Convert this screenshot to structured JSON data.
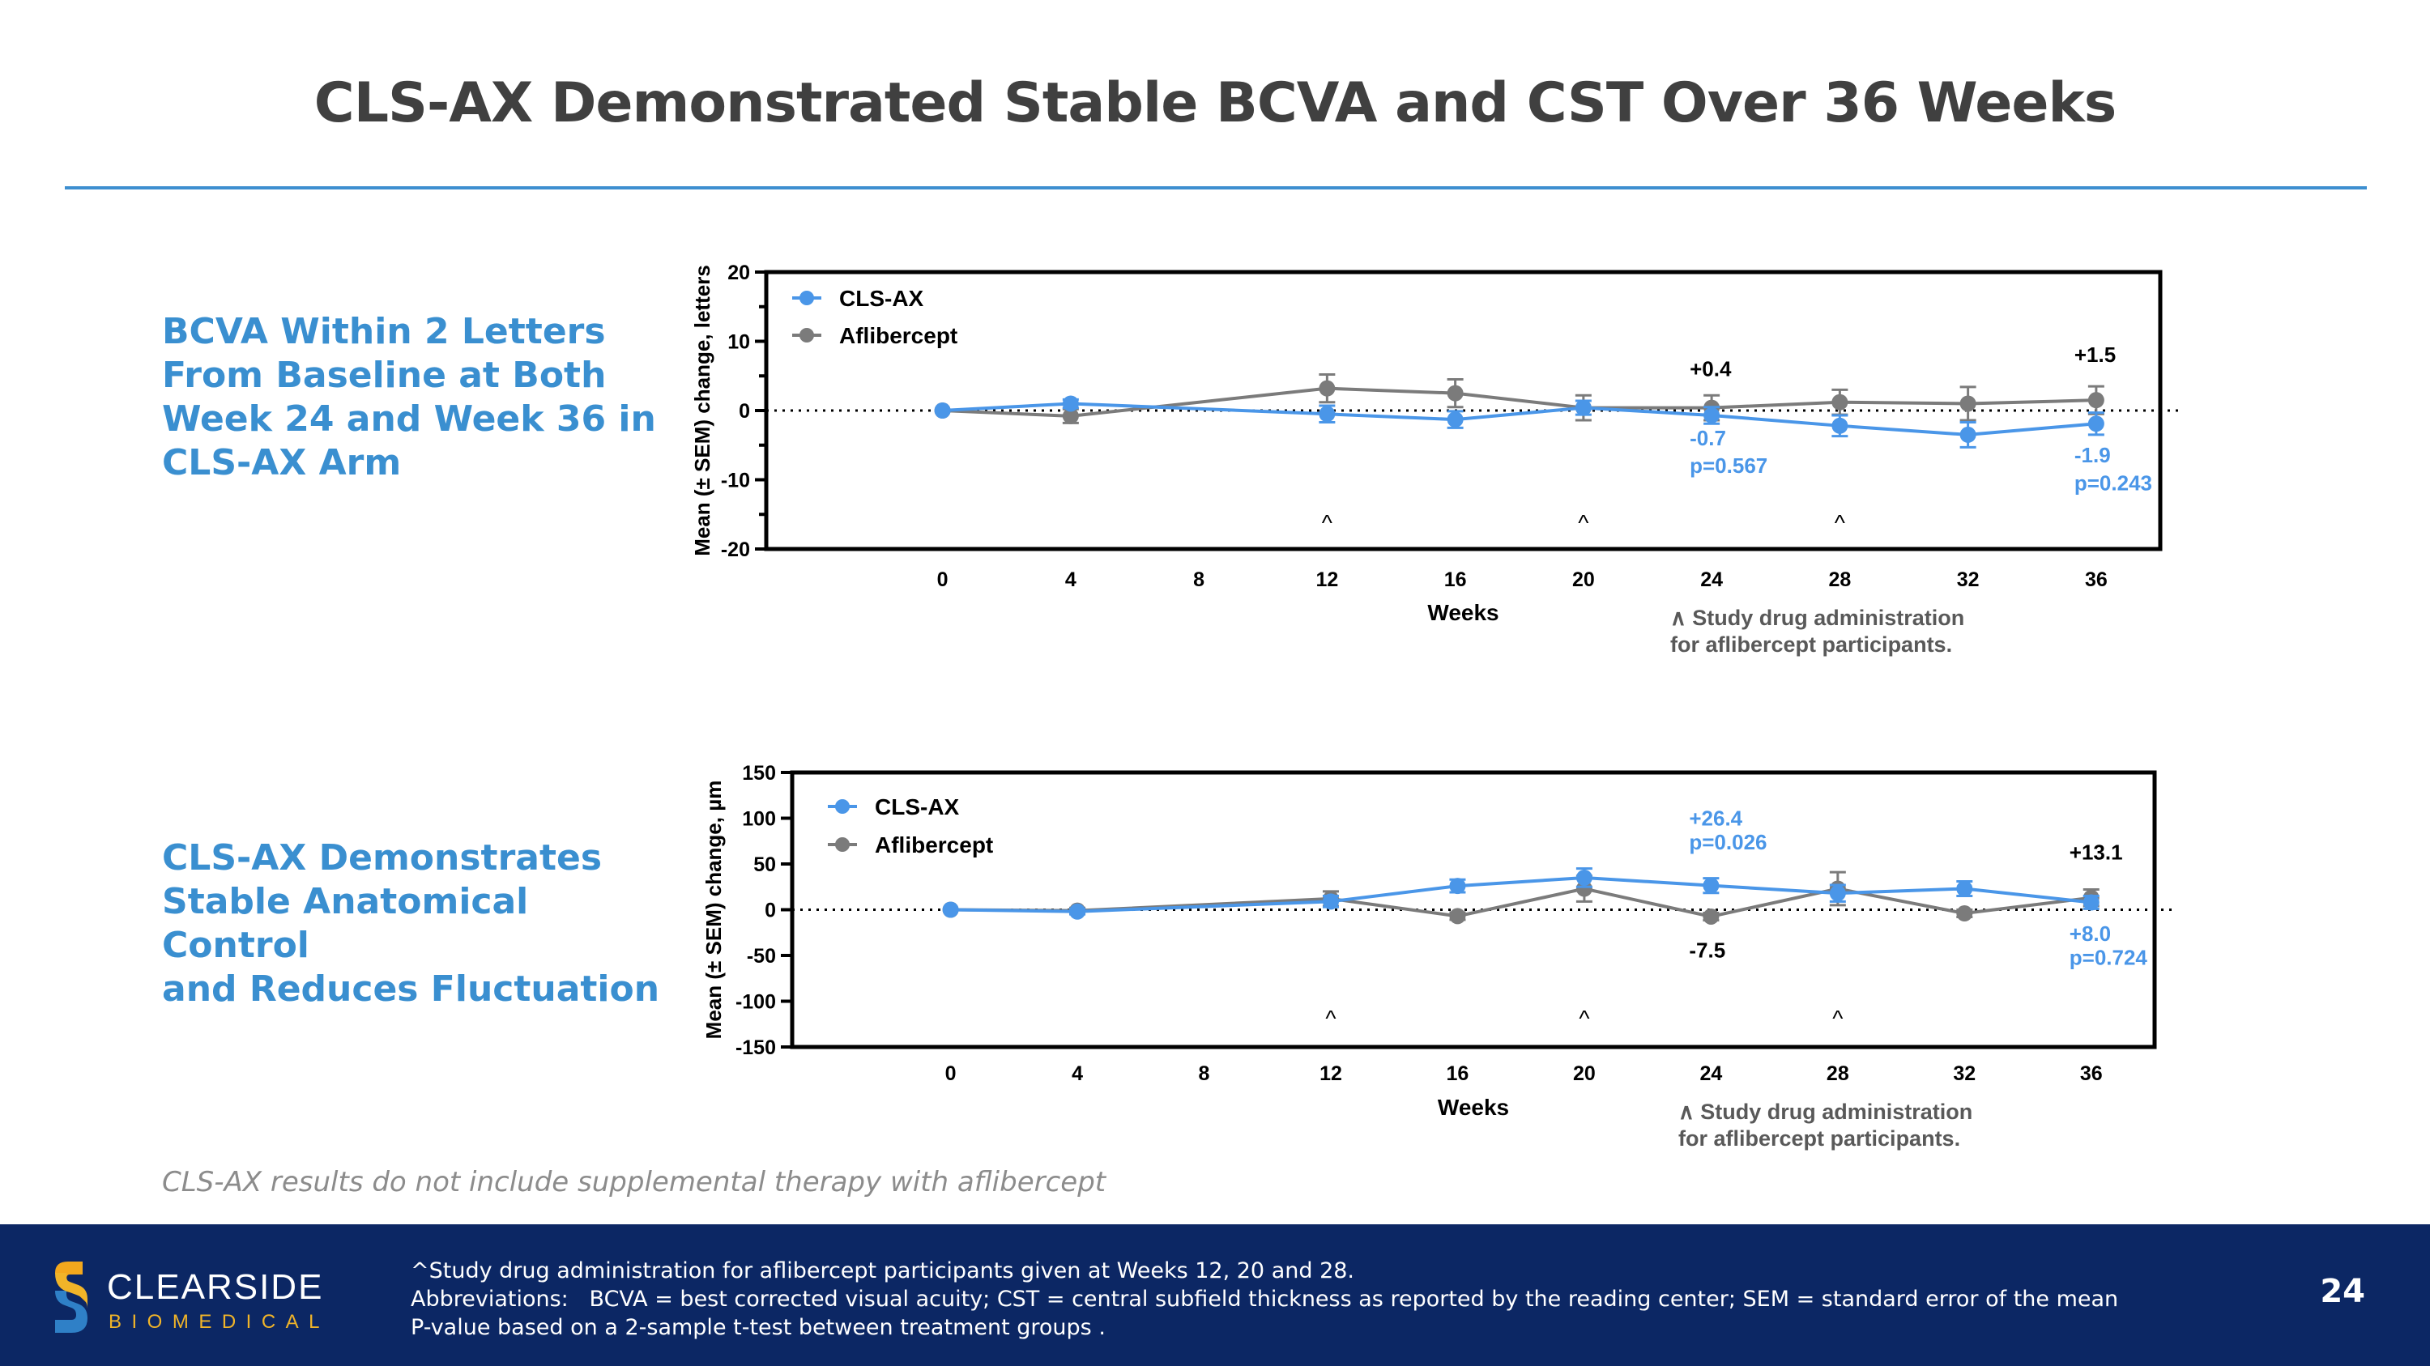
{
  "title": "CLS-AX Demonstrated Stable BCVA and CST Over 36 Weeks",
  "colors": {
    "clsax": "#4a96e8",
    "aflibercept": "#7b7b7b",
    "heading_blue": "#3a8fd0",
    "footer_bg": "#0c2764"
  },
  "bcva_heading": "BCVA Within 2 Letters\nFrom Baseline at Both\nWeek 24 and Week 36 in\nCLS-AX Arm",
  "cst_heading": "CLS-AX Demonstrates\nStable Anatomical Control\nand Reduces Fluctuation",
  "footnote_italic": "CLS-AX results do not include supplemental therapy with aflibercept",
  "footer": {
    "logo_word": "CLEARSIDE",
    "logo_sub": "BIOMEDICAL",
    "notes": [
      "^Study drug administration for aflibercept participants given at Weeks 12, 20 and 28.",
      "Abbreviations:   BCVA = best corrected visual acuity; CST = central subfield thickness as reported by the reading center; SEM = standard error of the mean",
      "P-value based on a 2-sample t-test between treatment groups ."
    ],
    "page_number": "24"
  },
  "chart_data": [
    {
      "id": "bcva",
      "type": "line",
      "xlabel": "Weeks",
      "ylabel": "Mean (± SEM) change, letters",
      "xlim": [
        -5.5,
        38
      ],
      "ylim": [
        -20,
        20
      ],
      "x_ticks": [
        0,
        4,
        8,
        12,
        16,
        20,
        24,
        28,
        32,
        36
      ],
      "y_ticks": [
        20,
        10,
        0,
        -10,
        -20
      ],
      "y_minor_ticks": [
        15,
        5,
        -5,
        -15
      ],
      "reference_line": 0,
      "legend": [
        "CLS-AX",
        "Aflibercept"
      ],
      "series": [
        {
          "name": "CLS-AX",
          "x": [
            0,
            4,
            12,
            16,
            20,
            24,
            28,
            32,
            36
          ],
          "y": [
            0,
            1.0,
            -0.5,
            -1.3,
            0.4,
            -0.7,
            -2.2,
            -3.5,
            -1.9
          ],
          "sem": [
            0,
            0.6,
            1.2,
            1.2,
            1.0,
            1.2,
            1.5,
            1.8,
            1.6
          ]
        },
        {
          "name": "Aflibercept",
          "x": [
            0,
            4,
            12,
            16,
            20,
            24,
            28,
            32,
            36
          ],
          "y": [
            0,
            -0.8,
            3.2,
            2.5,
            0.4,
            0.4,
            1.2,
            1.0,
            1.5
          ],
          "sem": [
            0,
            1.0,
            2.0,
            2.0,
            1.8,
            1.8,
            1.8,
            2.4,
            2.0
          ]
        }
      ],
      "dose_markers": [
        12,
        20,
        28
      ],
      "dose_marker_symbol": "^",
      "annotations": [
        {
          "text": "+0.4",
          "series": "Aflibercept",
          "x": 24,
          "y": 5
        },
        {
          "text": "+1.5",
          "series": "Aflibercept",
          "x": 36,
          "y": 7
        },
        {
          "text": "-0.7",
          "series": "CLS-AX",
          "x": 24,
          "y": -5
        },
        {
          "text": "p=0.567",
          "series": "CLS-AX",
          "x": 24,
          "y": -9
        },
        {
          "text": "-1.9",
          "series": "CLS-AX",
          "x": 36,
          "y": -7.5
        },
        {
          "text": "p=0.243",
          "series": "CLS-AX",
          "x": 36,
          "y": -11.5
        }
      ],
      "note_line1": "∧ Study drug administration",
      "note_line2": "for aflibercept participants."
    },
    {
      "id": "cst",
      "type": "line",
      "xlabel": "Weeks",
      "ylabel": "Mean (± SEM) change,  µm",
      "xlim": [
        -5,
        38
      ],
      "ylim": [
        -150,
        150
      ],
      "x_ticks": [
        0,
        4,
        8,
        12,
        16,
        20,
        24,
        28,
        32,
        36
      ],
      "y_ticks": [
        150,
        100,
        50,
        0,
        -50,
        -100,
        -150
      ],
      "y_minor_ticks": [],
      "reference_line": 0,
      "legend": [
        "CLS-AX",
        "Aflibercept"
      ],
      "series": [
        {
          "name": "CLS-AX",
          "x": [
            0,
            4,
            12,
            16,
            20,
            24,
            28,
            32,
            36
          ],
          "y": [
            0,
            -2,
            9,
            26,
            35,
            26.4,
            18,
            23,
            8.0
          ],
          "sem": [
            0,
            3,
            6,
            7,
            10,
            8,
            9,
            8,
            7
          ]
        },
        {
          "name": "Aflibercept",
          "x": [
            0,
            4,
            12,
            16,
            20,
            24,
            28,
            32,
            36
          ],
          "y": [
            0,
            -1,
            12,
            -7,
            23,
            -7.5,
            23,
            -4,
            13.1
          ],
          "sem": [
            0,
            3,
            8,
            4,
            14,
            4,
            18,
            4,
            9
          ]
        }
      ],
      "dose_markers": [
        12,
        20,
        28
      ],
      "dose_marker_symbol": "^",
      "annotations": [
        {
          "text": "+26.4",
          "series": "CLS-AX",
          "x": 24,
          "y": 92
        },
        {
          "text": "p=0.026",
          "series": "CLS-AX",
          "x": 24,
          "y": 66
        },
        {
          "text": "+13.1",
          "series": "Aflibercept",
          "x": 36,
          "y": 55
        },
        {
          "text": "-7.5",
          "series": "Aflibercept",
          "x": 24,
          "y": -52
        },
        {
          "text": "+8.0",
          "series": "CLS-AX",
          "x": 36,
          "y": -34
        },
        {
          "text": "p=0.724",
          "series": "CLS-AX",
          "x": 36,
          "y": -60
        }
      ],
      "note_line1": "∧ Study drug administration",
      "note_line2": "for aflibercept participants."
    }
  ]
}
